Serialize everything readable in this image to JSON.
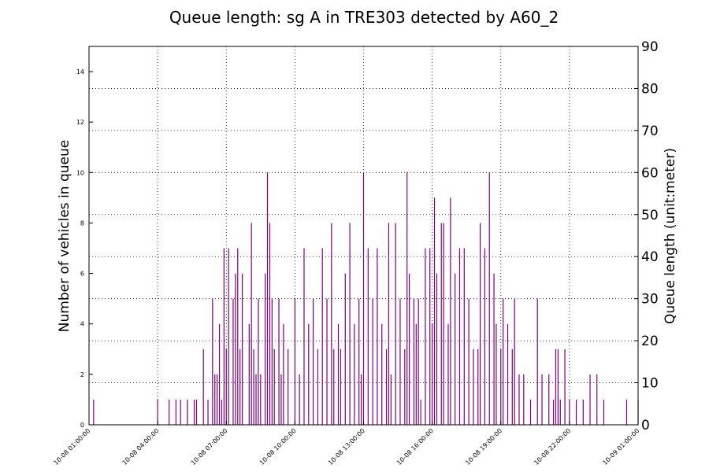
{
  "chart_data": {
    "type": "bar",
    "title": "Queue length: sg A in TRE303 detected by A60_2",
    "ylabel_left": "Number of vehicles in queue",
    "ylabel_right": "Queue length (unit:meter)",
    "xlabel": "",
    "ylim_left": [
      0,
      15
    ],
    "ylim_right": [
      0,
      90
    ],
    "yticks_left": [
      "0",
      "2",
      "4",
      "6",
      "8",
      "10",
      "12",
      "14"
    ],
    "yticks_right": [
      "0",
      "10",
      "20",
      "30",
      "40",
      "50",
      "60",
      "70",
      "80",
      "90"
    ],
    "xlim": [
      "10-08 01:00:00",
      "10-09 01:00:00"
    ],
    "xticks": [
      "10-08 01:00:00",
      "10-08 04:00:00",
      "10-08 07:00:00",
      "10-08 10:00:00",
      "10-08 13:00:00",
      "10-08 16:00:00",
      "10-08 19:00:00",
      "10-08 22:00:00",
      "10-09 01:00:00"
    ],
    "grid": true,
    "bar_color": "#800080",
    "x": [
      "10-08 01:12:00",
      "10-08 04:00:00",
      "10-08 04:30:00",
      "10-08 04:48:00",
      "10-08 05:00:00",
      "10-08 05:18:00",
      "10-08 05:36:00",
      "10-08 05:42:00",
      "10-08 06:00:00",
      "10-08 06:12:00",
      "10-08 06:24:00",
      "10-08 06:30:00",
      "10-08 06:36:00",
      "10-08 06:42:00",
      "10-08 06:48:00",
      "10-08 06:54:00",
      "10-08 07:00:00",
      "10-08 07:06:00",
      "10-08 07:18:00",
      "10-08 07:24:00",
      "10-08 07:30:00",
      "10-08 07:36:00",
      "10-08 07:42:00",
      "10-08 08:00:00",
      "10-08 08:06:00",
      "10-08 08:12:00",
      "10-08 08:18:00",
      "10-08 08:24:00",
      "10-08 08:30:00",
      "10-08 08:42:00",
      "10-08 08:48:00",
      "10-08 08:54:00",
      "10-08 09:00:00",
      "10-08 09:06:00",
      "10-08 09:18:00",
      "10-08 09:24:00",
      "10-08 09:30:00",
      "10-08 09:42:00",
      "10-08 10:00:00",
      "10-08 10:12:00",
      "10-08 10:24:00",
      "10-08 10:36:00",
      "10-08 10:48:00",
      "10-08 11:00:00",
      "10-08 11:12:00",
      "10-08 11:24:00",
      "10-08 11:36:00",
      "10-08 11:42:00",
      "10-08 11:54:00",
      "10-08 12:00:00",
      "10-08 12:12:00",
      "10-08 12:24:00",
      "10-08 12:36:00",
      "10-08 12:48:00",
      "10-08 12:54:00",
      "10-08 13:00:00",
      "10-08 13:12:00",
      "10-08 13:24:00",
      "10-08 13:36:00",
      "10-08 13:48:00",
      "10-08 14:00:00",
      "10-08 14:06:00",
      "10-08 14:12:00",
      "10-08 14:24:00",
      "10-08 14:36:00",
      "10-08 14:48:00",
      "10-08 14:54:00",
      "10-08 15:00:00",
      "10-08 15:12:00",
      "10-08 15:18:00",
      "10-08 15:24:00",
      "10-08 15:30:00",
      "10-08 15:42:00",
      "10-08 15:54:00",
      "10-08 16:00:00",
      "10-08 16:06:00",
      "10-08 16:12:00",
      "10-08 16:24:00",
      "10-08 16:30:00",
      "10-08 16:42:00",
      "10-08 16:48:00",
      "10-08 17:00:00",
      "10-08 17:12:00",
      "10-08 17:24:00",
      "10-08 17:36:00",
      "10-08 17:48:00",
      "10-08 18:00:00",
      "10-08 18:06:00",
      "10-08 18:18:00",
      "10-08 18:30:00",
      "10-08 18:42:00",
      "10-08 18:48:00",
      "10-08 19:00:00",
      "10-08 19:06:00",
      "10-08 19:18:00",
      "10-08 19:30:00",
      "10-08 19:36:00",
      "10-08 19:48:00",
      "10-08 20:00:00",
      "10-08 20:18:00",
      "10-08 20:36:00",
      "10-08 20:48:00",
      "10-08 21:06:00",
      "10-08 21:18:00",
      "10-08 21:24:00",
      "10-08 21:30:00",
      "10-08 21:36:00",
      "10-08 21:48:00",
      "10-08 22:00:00",
      "10-08 22:18:00",
      "10-08 22:36:00",
      "10-08 22:54:00",
      "10-08 23:12:00",
      "10-08 23:30:00",
      "10-09 00:30:00",
      "10-09 01:00:00"
    ],
    "values": [
      1,
      1,
      1,
      1,
      1,
      1,
      1,
      1,
      3,
      1,
      5,
      2,
      2,
      4,
      1,
      7,
      3,
      7,
      5,
      6,
      7,
      3,
      6,
      4,
      8,
      3,
      2,
      5,
      2,
      6,
      10,
      8,
      5,
      3,
      5,
      2,
      4,
      3,
      5,
      2,
      7,
      4,
      5,
      3,
      7,
      5,
      8,
      3,
      4,
      3,
      6,
      8,
      4,
      5,
      2,
      10,
      7,
      5,
      7,
      4,
      3,
      8,
      2,
      8,
      5,
      3,
      10,
      6,
      5,
      4,
      5,
      1,
      7,
      7,
      4,
      9,
      6,
      8,
      8,
      4,
      9,
      6,
      7,
      7,
      5,
      3,
      3,
      8,
      7,
      10,
      6,
      4,
      3,
      5,
      4,
      3,
      5,
      2,
      2,
      1,
      5,
      2,
      2,
      1,
      3,
      3,
      1,
      3,
      1,
      1,
      1,
      2,
      2,
      1,
      1,
      1
    ]
  }
}
